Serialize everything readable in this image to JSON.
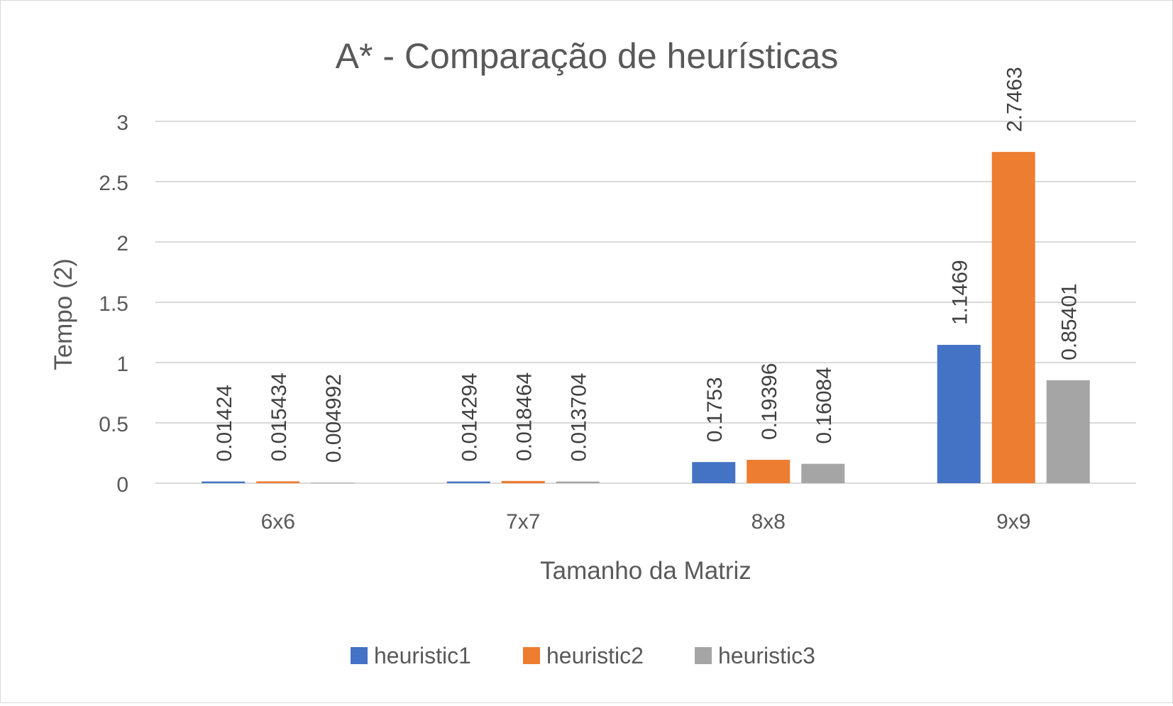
{
  "chart_data": {
    "type": "bar",
    "title": "A* - Comparação de heurísticas",
    "xlabel": "Tamanho da Matriz",
    "ylabel": "Tempo (2)",
    "categories": [
      "6x6",
      "7x7",
      "8x8",
      "9x9"
    ],
    "series": [
      {
        "name": "heuristic1",
        "color": "#4472c4",
        "values": [
          0.01424,
          0.014294,
          0.1753,
          1.1469
        ],
        "labels": [
          "0.01424",
          "0.014294",
          "0.1753",
          "1.1469"
        ]
      },
      {
        "name": "heuristic2",
        "color": "#ed7d31",
        "values": [
          0.015434,
          0.018464,
          0.19396,
          2.7463
        ],
        "labels": [
          "0.015434",
          "0.018464",
          "0.19396",
          "2.7463"
        ]
      },
      {
        "name": "heuristic3",
        "color": "#a5a5a5",
        "values": [
          0.004992,
          0.013704,
          0.16084,
          0.85401
        ],
        "labels": [
          "0.004992",
          "0.013704",
          "0.16084",
          "0.85401"
        ]
      }
    ],
    "ylim": [
      0,
      3
    ],
    "yticks": [
      0,
      0.5,
      1,
      1.5,
      2,
      2.5,
      3
    ],
    "ytick_labels": [
      "0",
      "0.5",
      "1",
      "1.5",
      "2",
      "2.5",
      "3"
    ],
    "grid": true,
    "legend": "bottom",
    "data_labels": "rotated-vertical"
  }
}
